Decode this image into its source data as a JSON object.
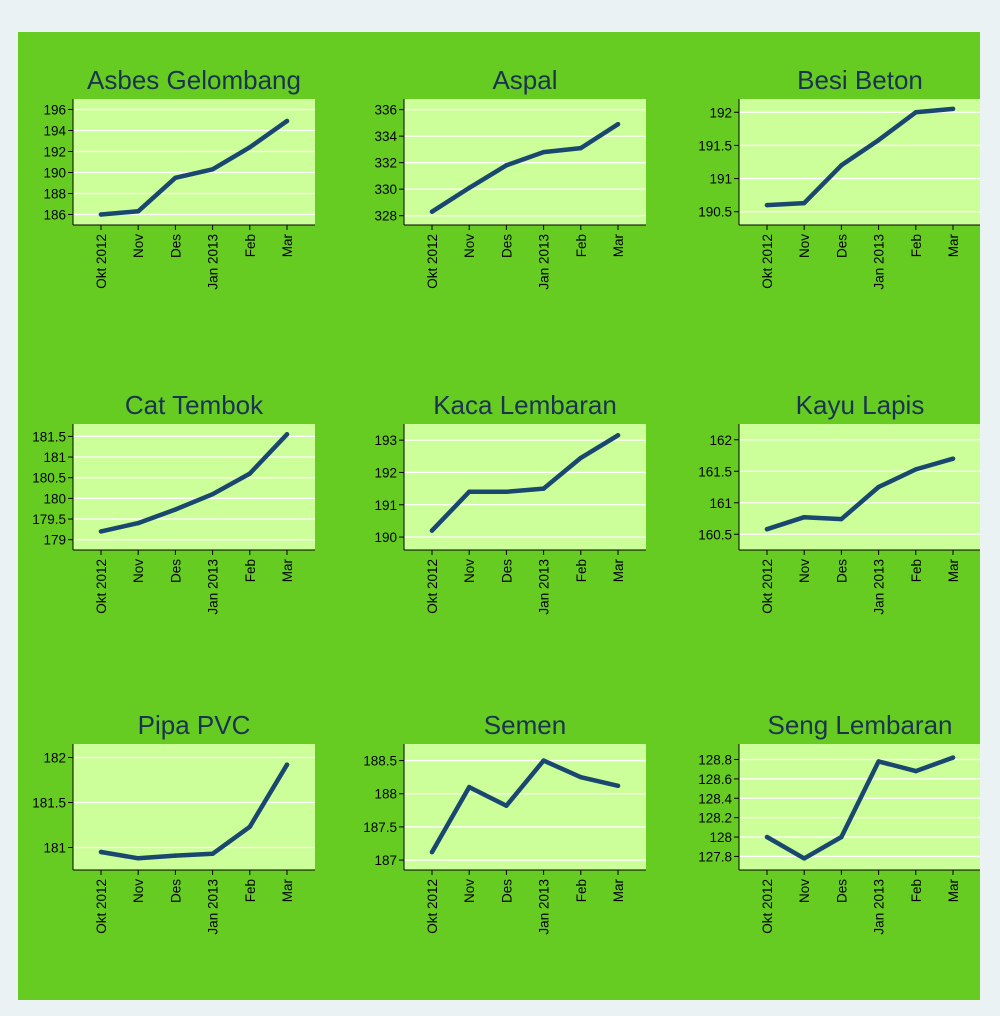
{
  "colors": {
    "figure_background": "#66cc22",
    "plot_background": "#ccff99",
    "line": "#1a476f",
    "gridline": "#ffffff"
  },
  "chart_data": [
    {
      "type": "line",
      "title": "Asbes Gelombang",
      "categories": [
        "Okt 2012",
        "Nov",
        "Des",
        "Jan 2013",
        "Feb",
        "Mar"
      ],
      "values": [
        186.0,
        186.3,
        189.5,
        190.3,
        192.4,
        194.9
      ],
      "yticks": [
        "196",
        "194",
        "192",
        "190",
        "188",
        "186"
      ],
      "ylim": [
        185.0,
        197.0
      ],
      "grid": true
    },
    {
      "type": "line",
      "title": "Aspal",
      "categories": [
        "Okt 2012",
        "Nov",
        "Des",
        "Jan 2013",
        "Feb",
        "Mar"
      ],
      "values": [
        328.3,
        330.1,
        331.8,
        332.8,
        333.1,
        334.9
      ],
      "yticks": [
        "336",
        "334",
        "332",
        "330",
        "328"
      ],
      "ylim": [
        327.3,
        336.8
      ],
      "grid": true
    },
    {
      "type": "line",
      "title": "Besi Beton",
      "categories": [
        "Okt 2012",
        "Nov",
        "Des",
        "Jan 2013",
        "Feb",
        "Mar"
      ],
      "values": [
        190.6,
        190.63,
        191.2,
        191.58,
        192.0,
        192.05
      ],
      "yticks": [
        "192",
        "191.5",
        "191",
        "190.5"
      ],
      "ylim": [
        190.3,
        192.2
      ],
      "grid": true
    },
    {
      "type": "line",
      "title": "Cat Tembok",
      "categories": [
        "Okt 2012",
        "Nov",
        "Des",
        "Jan 2013",
        "Feb",
        "Mar"
      ],
      "values": [
        179.2,
        179.4,
        179.73,
        180.1,
        180.6,
        181.55
      ],
      "yticks": [
        "181.5",
        "181",
        "180.5",
        "180",
        "179.5",
        "179"
      ],
      "ylim": [
        178.75,
        181.8
      ],
      "grid": true
    },
    {
      "type": "line",
      "title": "Kaca Lembaran",
      "categories": [
        "Okt 2012",
        "Nov",
        "Des",
        "Jan 2013",
        "Feb",
        "Mar"
      ],
      "values": [
        190.2,
        191.4,
        191.4,
        191.5,
        192.45,
        193.15
      ],
      "yticks": [
        "193",
        "192",
        "191",
        "190"
      ],
      "ylim": [
        189.6,
        193.5
      ],
      "grid": true
    },
    {
      "type": "line",
      "title": "Kayu Lapis",
      "categories": [
        "Okt 2012",
        "Nov",
        "Des",
        "Jan 2013",
        "Feb",
        "Mar"
      ],
      "values": [
        160.58,
        160.77,
        160.74,
        161.25,
        161.53,
        161.7
      ],
      "yticks": [
        "162",
        "161.5",
        "161",
        "160.5"
      ],
      "ylim": [
        160.25,
        162.25
      ],
      "grid": true
    },
    {
      "type": "line",
      "title": "Pipa PVC",
      "categories": [
        "Okt 2012",
        "Nov",
        "Des",
        "Jan 2013",
        "Feb",
        "Mar"
      ],
      "values": [
        180.95,
        180.88,
        180.91,
        180.93,
        181.23,
        181.92
      ],
      "yticks": [
        "182",
        "181.5",
        "181"
      ],
      "ylim": [
        180.75,
        182.15
      ],
      "grid": true
    },
    {
      "type": "line",
      "title": "Semen",
      "categories": [
        "Okt 2012",
        "Nov",
        "Des",
        "Jan 2013",
        "Feb",
        "Mar"
      ],
      "values": [
        187.12,
        188.1,
        187.82,
        188.5,
        188.25,
        188.12
      ],
      "yticks": [
        "188.5",
        "188",
        "187.5",
        "187"
      ],
      "ylim": [
        186.85,
        188.75
      ],
      "grid": true
    },
    {
      "type": "line",
      "title": "Seng Lembaran",
      "categories": [
        "Okt 2012",
        "Nov",
        "Des",
        "Jan 2013",
        "Feb",
        "Mar"
      ],
      "values": [
        128.0,
        127.78,
        128.0,
        128.78,
        128.68,
        128.82
      ],
      "yticks": [
        "128.8",
        "128.6",
        "128.4",
        "128.2",
        "128",
        "127.8"
      ],
      "ylim": [
        127.66,
        128.96
      ],
      "grid": true
    }
  ]
}
